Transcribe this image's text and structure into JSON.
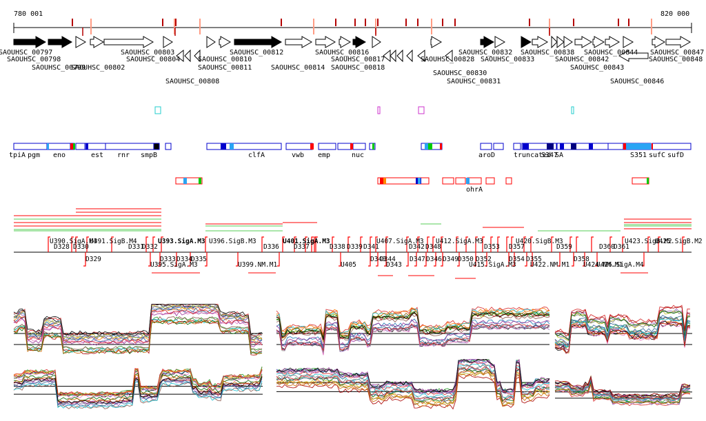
{
  "header": {
    "coord_start": "780 001",
    "coord_end": "820 000"
  },
  "genes_row1": [
    "SAOUHSC_00797",
    "SAOUHSC_00803",
    "SAOUHSC_00812",
    "SAOUHSC_00816",
    "SAOUHSC_00832",
    "SAOUHSC_00838",
    "SAOUHSC_00844",
    "SAOUHSC_00847"
  ],
  "genes_row2": [
    "SAOUHSC_00798",
    "SAOUHSC_00804",
    "SAOUHSC_00810",
    "SAOUHSC_00817",
    "SAOUHSC_00828",
    "SAOUHSC_00833",
    "SAOUHSC_00842",
    "SAOUHSC_00848"
  ],
  "genes_row3": [
    "SAOUHSC_00799",
    "SAOUHSC_00802",
    "SAOUHSC_00811",
    "SAOUHSC_00814",
    "SAOUHSC_00818",
    "SAOUHSC_00830",
    "SAOUHSC_00843"
  ],
  "genes_row4": [
    "SAOUHSC_00808",
    "SAOUHSC_00831",
    "SAOUHSC_00846"
  ],
  "annotation_labels": [
    "tpiA",
    "pgm",
    "eno",
    "est",
    "rnr",
    "smpB",
    "clfA",
    "vwb",
    "emp",
    "nuc",
    "aroD",
    "truncated",
    "S347",
    "SA",
    "S351",
    "sufC",
    "sufD"
  ],
  "ohr_label": "ohrA",
  "upper_promoters": [
    "U390.SigA.M4",
    "D328",
    "D330",
    "U391.SigB.M4",
    "D331",
    "D332",
    "U393.SigA.M3",
    "U396.SigB.M3",
    "D336",
    "U401.SigA.M3",
    "D337",
    "D338",
    "D339",
    "D341",
    "U407.SigA.M3",
    "D342",
    "D348",
    "U412.SigA.M3",
    "D353",
    "D357",
    "U420.SigB.M3",
    "D359",
    "D360",
    "D361",
    "U423.SigB.M2",
    "U425.SigB.M2"
  ],
  "lower_promoters": [
    "D329",
    "D333",
    "D334",
    "D335",
    "U395.SigA.M3",
    "U399.NM.M1",
    "U405",
    "D340",
    "D343",
    "D344",
    "D346",
    "D347",
    "D349",
    "D350",
    "D352",
    "U415.SigA.M3",
    "D354",
    "D355",
    "U422.NM.M1",
    "D358",
    "U424.NM.M1",
    "U426.SigA.M4"
  ],
  "colors": {
    "gene_solid": "#000000",
    "tick_red": "#b40000",
    "tick_salmon": "#ff9c84",
    "feature_blue": "#0000cc",
    "feature_cyan": "#2aa4f4",
    "feature_red": "#ff0000",
    "feature_green": "#00cc00",
    "promoter_red": "#ff0000",
    "band_green": "#55cc55",
    "cyan_box": "#22cccc",
    "magenta_box": "#cc33cc"
  }
}
